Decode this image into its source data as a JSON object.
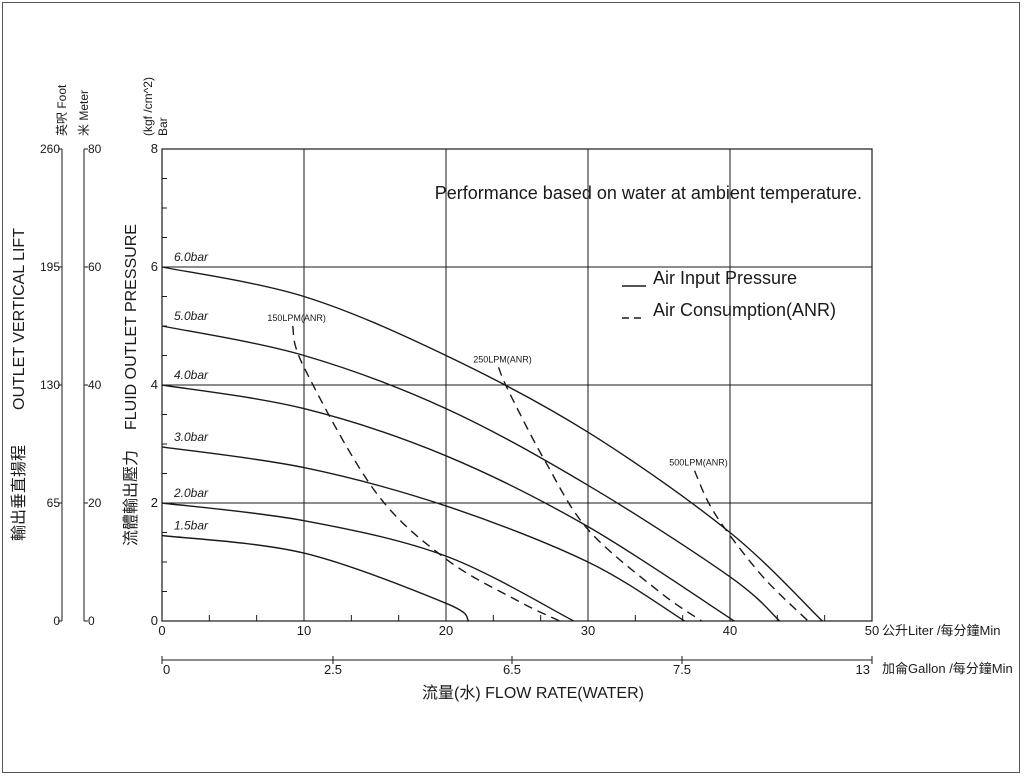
{
  "chart_data": {
    "type": "line",
    "title": "Performance based on water at ambient temperature.",
    "xlabel": "流量(水) FLOW RATE(WATER)",
    "x_unit_primary": "公升Liter /每分鐘Min",
    "x_unit_secondary": "加侖Gallon /每分鐘Min",
    "x_ticks_primary": [
      "0",
      "10",
      "20",
      "30",
      "40",
      "50"
    ],
    "x_ticks_secondary": [
      "0",
      "2.5",
      "6.5",
      "7.5",
      "13"
    ],
    "xlim": [
      0,
      50
    ],
    "ylabel_pressure": "FLUID OUTLET PRESSURE",
    "ylabel_pressure_cn": "流體輸出壓力",
    "y_unit_pressure_1": "(kgf /cm^2)",
    "y_unit_pressure_2": "Bar",
    "y_ticks_pressure": [
      "0",
      "2",
      "4",
      "6",
      "8"
    ],
    "ylim": [
      0,
      8
    ],
    "ylabel_lift": "OUTLET VERTICAL LIFT",
    "ylabel_lift_cn": "輸出垂直揚程",
    "y_unit_foot": "英呎 Foot",
    "y_unit_meter": "米 Meter",
    "y_ticks_foot": [
      "0",
      "65",
      "130",
      "195",
      "260"
    ],
    "y_ticks_meter": [
      "0",
      "20",
      "40",
      "60",
      "80"
    ],
    "grid": true,
    "legend": {
      "position": "top-right",
      "solid": "Air Input Pressure",
      "dashed": "Air Consumption(ANR)"
    },
    "series": [
      {
        "name": "6.0bar",
        "style": "solid",
        "x": [
          0,
          10,
          20,
          30,
          40,
          46.5
        ],
        "y": [
          6.0,
          5.5,
          4.5,
          3.2,
          1.5,
          0
        ]
      },
      {
        "name": "5.0bar",
        "style": "solid",
        "x": [
          0,
          10,
          20,
          30,
          40,
          43.5
        ],
        "y": [
          5.0,
          4.5,
          3.6,
          2.3,
          0.75,
          0
        ]
      },
      {
        "name": "4.0bar",
        "style": "solid",
        "x": [
          0,
          10,
          20,
          30,
          40.3
        ],
        "y": [
          4.0,
          3.6,
          2.8,
          1.6,
          0
        ]
      },
      {
        "name": "3.0bar",
        "style": "solid",
        "x": [
          0,
          10,
          20,
          30,
          36.8
        ],
        "y": [
          2.95,
          2.6,
          1.95,
          1.0,
          0
        ]
      },
      {
        "name": "2.0bar",
        "style": "solid",
        "x": [
          0,
          10,
          20,
          29
        ],
        "y": [
          2.0,
          1.7,
          1.1,
          0
        ]
      },
      {
        "name": "1.5bar",
        "style": "solid",
        "x": [
          0,
          10,
          20,
          21.6
        ],
        "y": [
          1.45,
          1.15,
          0.3,
          0
        ]
      },
      {
        "name": "150LPM(ANR)",
        "style": "dashed",
        "x": [
          9.2,
          10,
          15,
          20,
          25,
          28
        ],
        "y": [
          5.0,
          4.3,
          2.2,
          1.05,
          0.35,
          0
        ]
      },
      {
        "name": "250LPM(ANR)",
        "style": "dashed",
        "x": [
          23.7,
          24.4,
          27,
          30,
          35,
          38
        ],
        "y": [
          4.3,
          3.9,
          2.7,
          1.55,
          0.5,
          0
        ]
      },
      {
        "name": "500LPM(ANR)",
        "style": "dashed",
        "x": [
          37.5,
          38.5,
          40,
          42.5,
          45.5
        ],
        "y": [
          2.55,
          2.0,
          1.45,
          0.7,
          0
        ]
      }
    ]
  }
}
